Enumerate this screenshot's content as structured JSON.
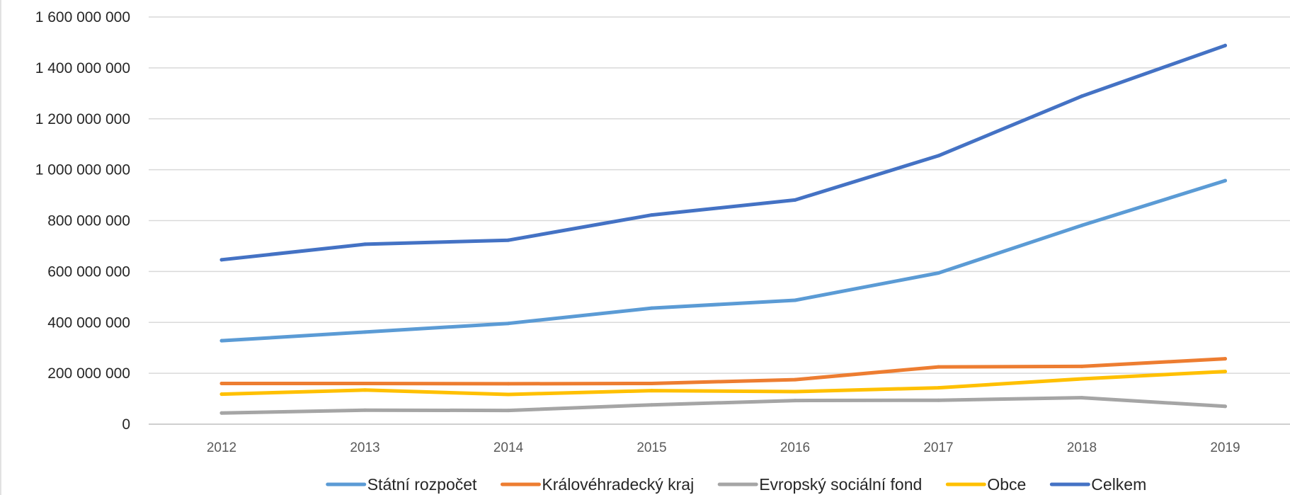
{
  "chart_data": {
    "type": "line",
    "title": "",
    "xlabel": "",
    "ylabel": "",
    "categories": [
      "2012",
      "2013",
      "2014",
      "2015",
      "2016",
      "2017",
      "2018",
      "2019"
    ],
    "ylim": [
      0,
      1600000000
    ],
    "y_ticks": [
      0,
      200000000,
      400000000,
      600000000,
      800000000,
      1000000000,
      1200000000,
      1400000000,
      1600000000
    ],
    "y_tick_labels": [
      "0",
      "200 000 000",
      "400 000 000",
      "600 000 000",
      "800 000 000",
      "1 000 000 000",
      "1 200 000 000",
      "1 400 000 000",
      "1 600 000 000"
    ],
    "grid": true,
    "legend_position": "bottom",
    "series": [
      {
        "name": "Státní rozpočet",
        "color": "#5B9BD5",
        "values": [
          328000000,
          362000000,
          396000000,
          456000000,
          487000000,
          594000000,
          781000000,
          957000000
        ]
      },
      {
        "name": "Královéhradecký kraj",
        "color": "#ED7D31",
        "values": [
          160000000,
          160000000,
          159000000,
          160000000,
          175000000,
          225000000,
          227000000,
          257000000
        ]
      },
      {
        "name": "Evropský sociální fond",
        "color": "#A5A5A5",
        "values": [
          44000000,
          55000000,
          54000000,
          76000000,
          93000000,
          94000000,
          104000000,
          70000000
        ]
      },
      {
        "name": "Obce",
        "color": "#FFC000",
        "values": [
          118000000,
          134000000,
          117000000,
          132000000,
          128000000,
          143000000,
          178000000,
          207000000
        ]
      },
      {
        "name": "Celkem",
        "color": "#4472C4",
        "values": [
          646000000,
          707000000,
          723000000,
          822000000,
          881000000,
          1055000000,
          1289000000,
          1488000000
        ]
      }
    ]
  }
}
